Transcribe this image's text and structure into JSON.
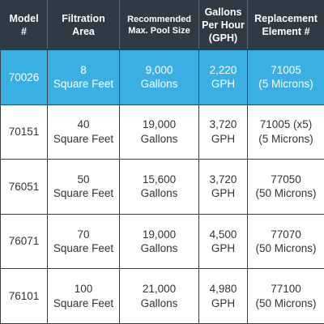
{
  "table": {
    "header": [
      [
        "Model",
        "#"
      ],
      [
        "Filtration",
        "Area"
      ],
      [
        "Recommended",
        "Max. Pool Size"
      ],
      [
        "Gallons",
        "Per Hour",
        "(GPH)"
      ],
      [
        "Replacement",
        "Element #"
      ]
    ],
    "rows": [
      [
        [
          "70026"
        ],
        [
          "8",
          "Square Feet"
        ],
        [
          "9,000",
          "Gallons"
        ],
        [
          "2,220",
          "GPH"
        ],
        [
          "71005",
          "(5 Microns)"
        ]
      ],
      [
        [
          "70151"
        ],
        [
          "40",
          "Square Feet"
        ],
        [
          "19,000",
          "Gallons"
        ],
        [
          "3,720",
          "GPH"
        ],
        [
          "71005 (x5)",
          "(5 Microns)"
        ]
      ],
      [
        [
          "76051"
        ],
        [
          "50",
          "Square Feet"
        ],
        [
          "15,600",
          "Gallons"
        ],
        [
          "3,720",
          "GPH"
        ],
        [
          "77050",
          "(50 Microns)"
        ]
      ],
      [
        [
          "76071"
        ],
        [
          "70",
          "Square Feet"
        ],
        [
          "19,000",
          "Gallons"
        ],
        [
          "4,500",
          "GPH"
        ],
        [
          "77070",
          "(50 Microns)"
        ]
      ],
      [
        [
          "76101"
        ],
        [
          "100",
          "Square Feet"
        ],
        [
          "21,000",
          "Gallons"
        ],
        [
          "4,980",
          "GPH"
        ],
        [
          "77100",
          "(50 Microns)"
        ]
      ]
    ]
  }
}
